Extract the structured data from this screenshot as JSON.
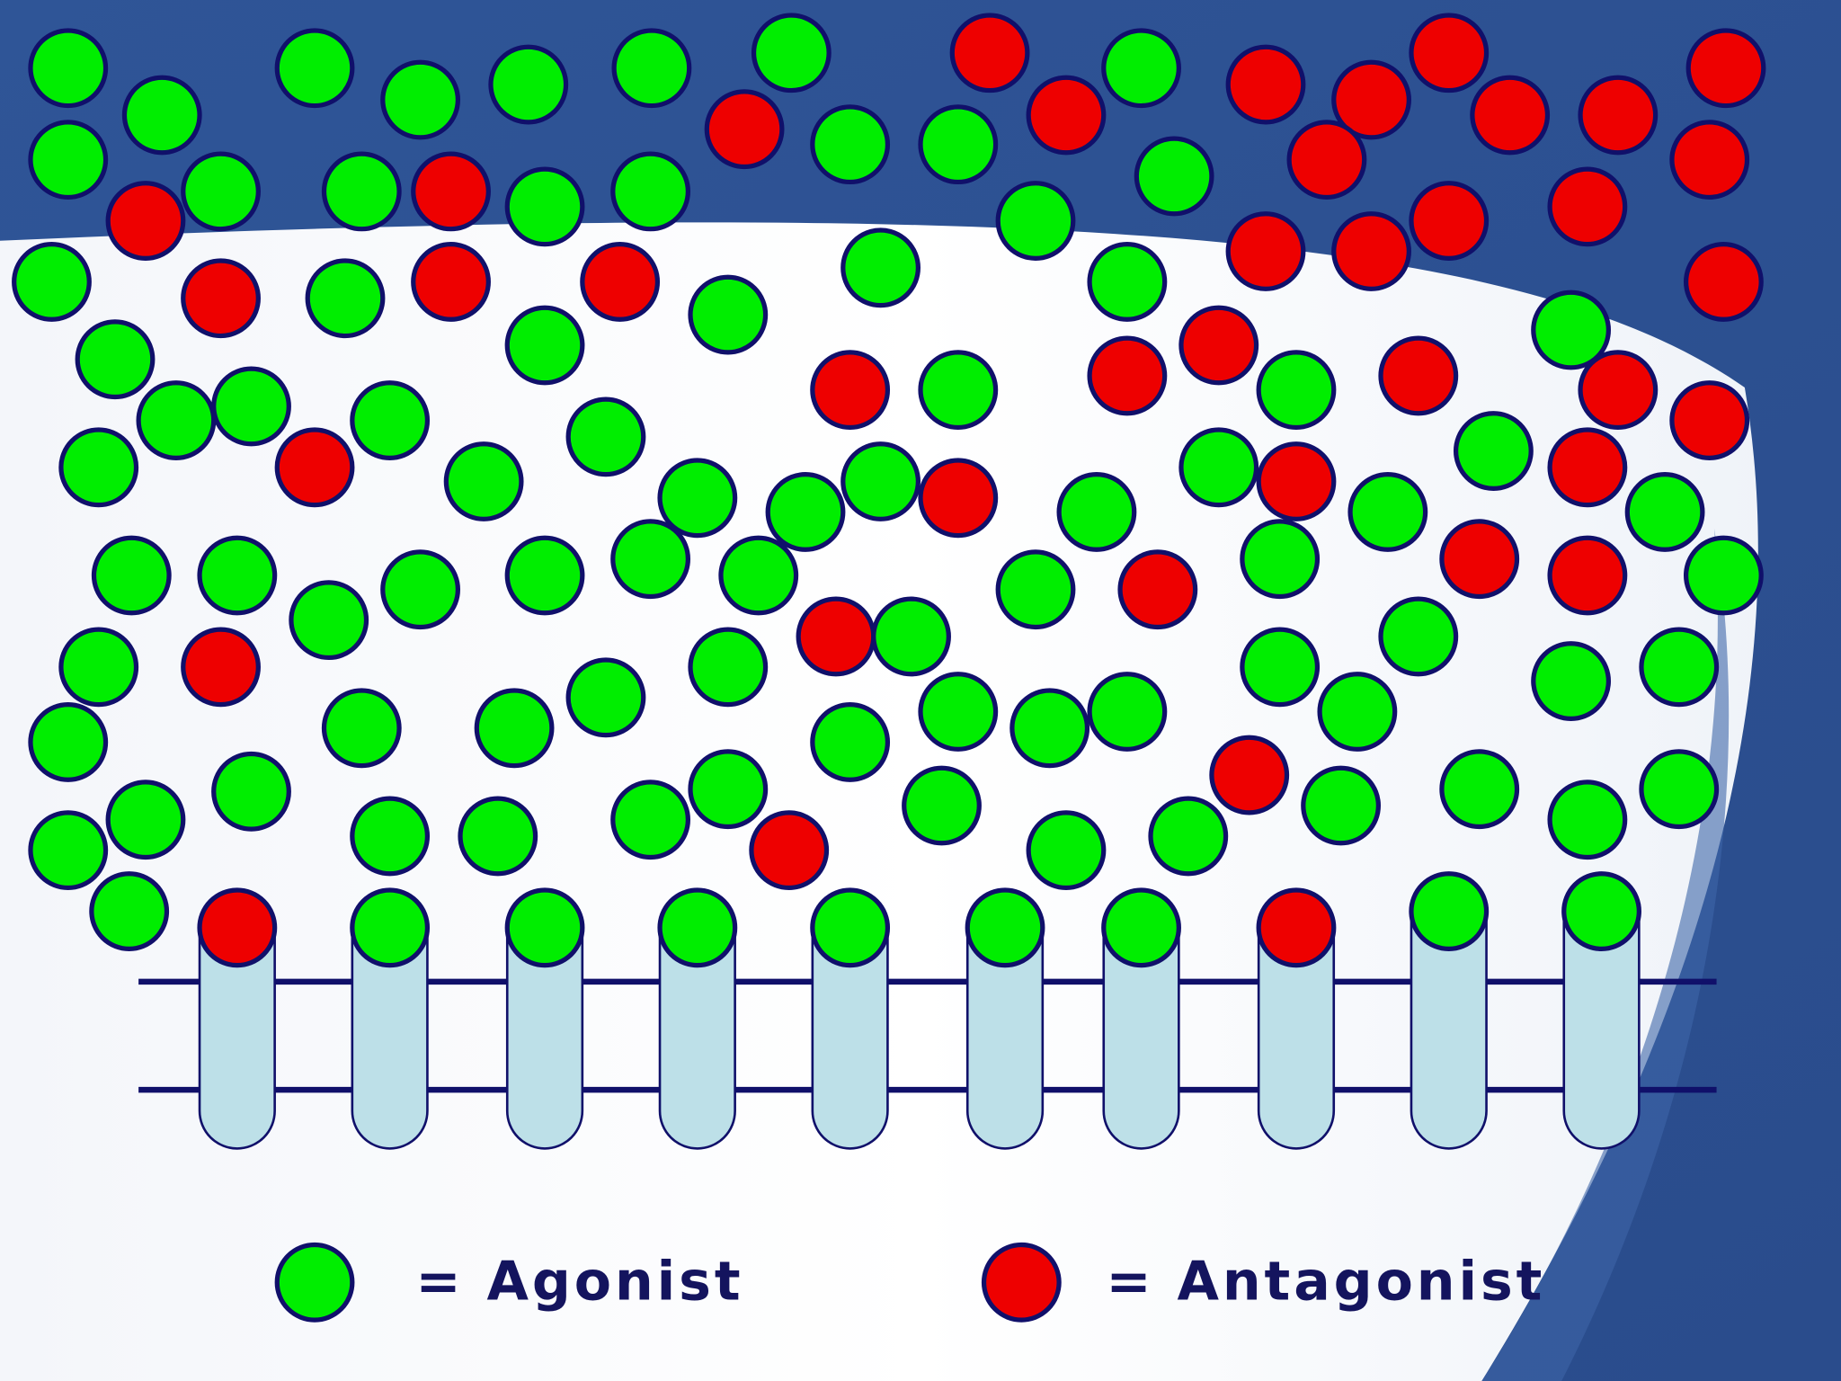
{
  "legend": {
    "agonist": "= Agonist",
    "antagonist": "= Antagonist"
  }
}
